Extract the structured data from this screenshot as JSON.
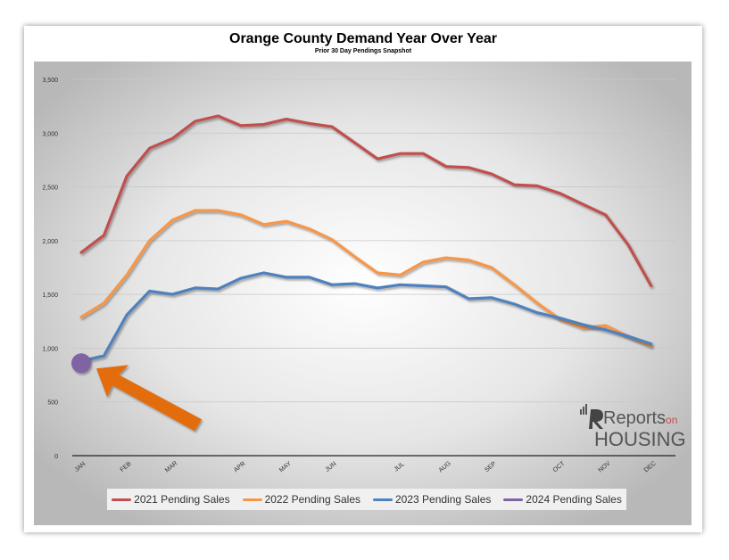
{
  "chart_data": {
    "type": "line",
    "title": "Orange County Demand Year Over Year",
    "subtitle": "Prior 30 Day Pendings Snapshot",
    "xlabel": "",
    "ylabel": "",
    "ylim": [
      0,
      3500
    ],
    "yticks": [
      0,
      500,
      1000,
      1500,
      2000,
      2500,
      3000,
      3500
    ],
    "ytick_labels": [
      "0",
      "500",
      "1,000",
      "1,500",
      "2,000",
      "2,500",
      "3,000",
      "3,500"
    ],
    "month_labels": [
      "JAN",
      "FEB",
      "MAR",
      "APR",
      "MAY",
      "JUN",
      "JUL",
      "AUG",
      "SEP",
      "OCT",
      "NOV",
      "DEC"
    ],
    "month_label_weeks": [
      0,
      2,
      4,
      7,
      9,
      11,
      14,
      16,
      18,
      21,
      23,
      25
    ],
    "weeks": 27,
    "grid": true,
    "legend_position": "bottom",
    "series": [
      {
        "name": "2021 Pending Sales",
        "color": "#c0504d",
        "values": [
          1890,
          2050,
          2600,
          2860,
          2950,
          3110,
          3160,
          3070,
          3080,
          3130,
          3090,
          3060,
          2910,
          2760,
          2810,
          2810,
          2690,
          2680,
          2620,
          2520,
          2510,
          2440,
          2340,
          2240,
          1960,
          1580
        ]
      },
      {
        "name": "2022 Pending Sales",
        "color": "#f79646",
        "values": [
          1290,
          1420,
          1680,
          2000,
          2190,
          2280,
          2280,
          2240,
          2150,
          2180,
          2110,
          2010,
          1850,
          1700,
          1680,
          1800,
          1840,
          1820,
          1750,
          1590,
          1420,
          1270,
          1190,
          1210,
          1110,
          1020
        ]
      },
      {
        "name": "2023 Pending Sales",
        "color": "#4f81bd",
        "values": [
          880,
          930,
          1310,
          1530,
          1500,
          1560,
          1550,
          1650,
          1700,
          1660,
          1660,
          1590,
          1600,
          1560,
          1590,
          1580,
          1570,
          1460,
          1470,
          1410,
          1330,
          1280,
          1220,
          1170,
          1110,
          1040
        ]
      },
      {
        "name": "2024 Pending Sales",
        "color": "#8064a2",
        "values": [
          860
        ]
      }
    ]
  },
  "annotation": {
    "arrow_color": "#e36c0a"
  },
  "logo": {
    "brand_top": "Reports",
    "brand_small": "on",
    "brand_bottom": "HOUSING",
    "color": "#555555"
  }
}
